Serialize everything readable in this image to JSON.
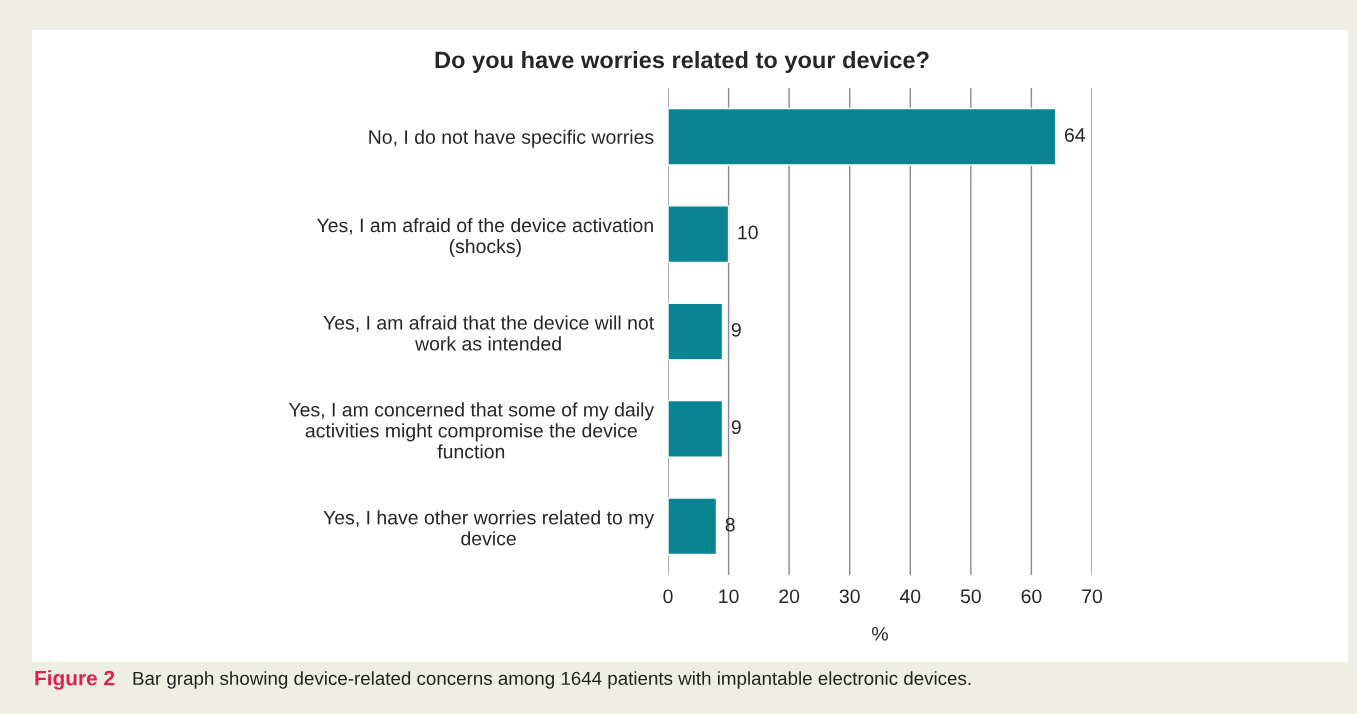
{
  "chart_data": {
    "type": "bar",
    "orientation": "horizontal",
    "title": "Do you have worries related to your device?",
    "xlabel": "%",
    "categories": [
      "No, I do not have specific worries",
      "Yes, I am afraid of the device activation (shocks)",
      "Yes, I am afraid that the device will not work as intended",
      "Yes, I am concerned that some of my daily activities might compromise the device function",
      "Yes, I have other worries related to my device"
    ],
    "values": [
      64,
      10,
      9,
      9,
      8
    ],
    "color": "#0a8492",
    "data_labels": true,
    "xlim": [
      0,
      70
    ],
    "xticks": [
      0,
      10,
      20,
      30,
      40,
      50,
      60,
      70
    ],
    "grid": "x",
    "legend": false,
    "annotations": [
      "Figure 2",
      "Bar graph showing device-related concerns among 1644 patients with implantable electronic devices."
    ]
  }
}
